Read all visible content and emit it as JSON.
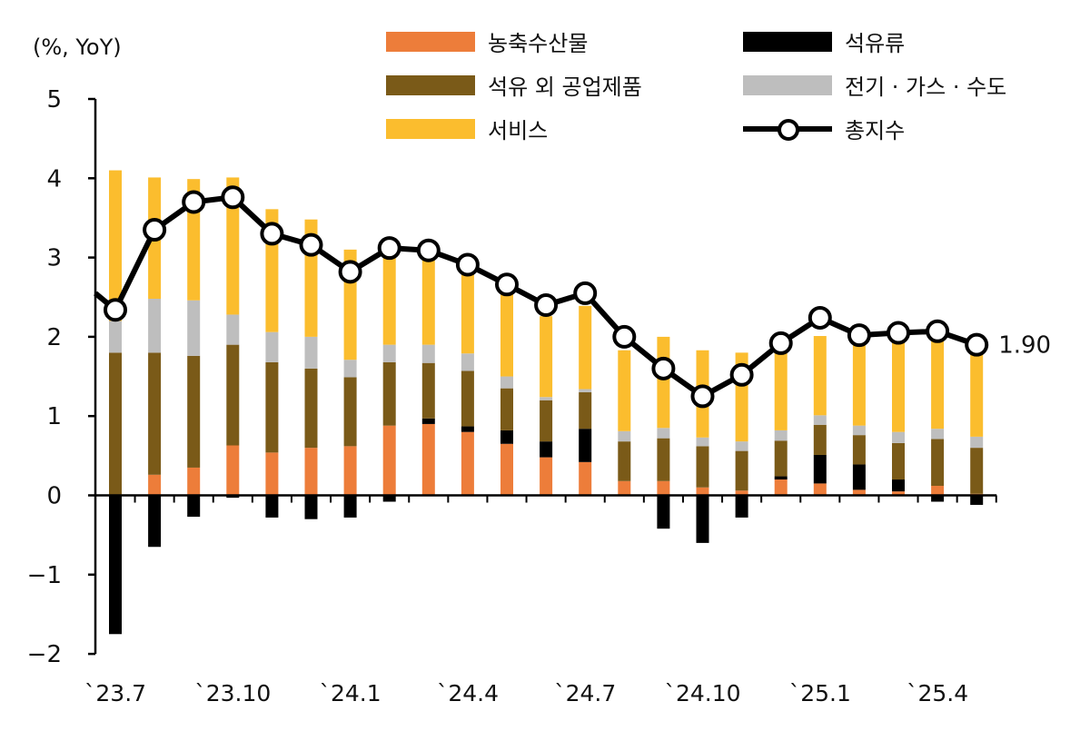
{
  "unit_label": "(%, YoY)",
  "legend": [
    {
      "label": "농축수산물",
      "color": "#ED7D3A",
      "kind": "bar"
    },
    {
      "label": "석유류",
      "color": "#000000",
      "kind": "bar"
    },
    {
      "label": "석유 외 공업제품",
      "color": "#7A5A18",
      "kind": "bar"
    },
    {
      "label": "전기 · 가스 · 수도",
      "color": "#BEBEBE",
      "kind": "bar"
    },
    {
      "label": "서비스",
      "color": "#FBBD2E",
      "kind": "bar"
    },
    {
      "label": "총지수",
      "color": "#000000",
      "kind": "line"
    }
  ],
  "chart_data": {
    "type": "bar",
    "stacked": true,
    "ylim": [
      -2,
      5
    ],
    "yticks": [
      5,
      4,
      3,
      2,
      1,
      0,
      -1,
      -2
    ],
    "ytick_labels": [
      "5",
      "4",
      "3",
      "2",
      "1",
      "0",
      "−1",
      "−2"
    ],
    "categories": [
      "`23.7",
      "`23.8",
      "`23.9",
      "`23.10",
      "`23.11",
      "`23.12",
      "`24.1",
      "`24.2",
      "`24.3",
      "`24.4",
      "`24.5",
      "`24.6",
      "`24.7",
      "`24.8",
      "`24.9",
      "`24.10",
      "`24.11",
      "`24.12",
      "`25.1",
      "`25.2",
      "`25.3",
      "`25.4",
      "`25.5"
    ],
    "xtick_labels": {
      "0": "`23.7",
      "3": "`23.10",
      "6": "`24.1",
      "9": "`24.4",
      "12": "`24.7",
      "15": "`24.10",
      "18": "`25.1",
      "21": "`25.4"
    },
    "series": [
      {
        "name": "농축수산물",
        "color": "#ED7D3A",
        "values": [
          0.0,
          0.26,
          0.35,
          0.63,
          0.54,
          0.6,
          0.62,
          0.88,
          0.9,
          0.8,
          0.65,
          0.48,
          0.42,
          0.18,
          0.18,
          0.1,
          0.06,
          0.2,
          0.15,
          0.07,
          0.05,
          0.12,
          0.02
        ]
      },
      {
        "name": "석유류",
        "color": "#000000",
        "values": [
          -1.75,
          -0.65,
          -0.27,
          -0.03,
          -0.28,
          -0.3,
          -0.28,
          -0.08,
          0.07,
          0.07,
          0.17,
          0.2,
          0.42,
          0.0,
          -0.42,
          -0.6,
          -0.28,
          0.04,
          0.36,
          0.32,
          0.15,
          -0.08,
          -0.12
        ]
      },
      {
        "name": "석유 외 공업제품",
        "color": "#7A5A18",
        "values": [
          1.8,
          1.54,
          1.41,
          1.27,
          1.14,
          1.0,
          0.87,
          0.8,
          0.7,
          0.7,
          0.53,
          0.52,
          0.46,
          0.5,
          0.54,
          0.52,
          0.5,
          0.45,
          0.38,
          0.37,
          0.46,
          0.59,
          0.58
        ]
      },
      {
        "name": "전기 · 가스 · 수도",
        "color": "#BEBEBE",
        "values": [
          0.4,
          0.68,
          0.7,
          0.38,
          0.38,
          0.4,
          0.22,
          0.22,
          0.23,
          0.22,
          0.15,
          0.04,
          0.04,
          0.13,
          0.13,
          0.11,
          0.12,
          0.13,
          0.12,
          0.12,
          0.14,
          0.13,
          0.14
        ]
      },
      {
        "name": "서비스",
        "color": "#FBBD2E",
        "values": [
          1.9,
          1.53,
          1.53,
          1.73,
          1.55,
          1.48,
          1.39,
          1.2,
          1.2,
          1.0,
          1.15,
          1.02,
          1.05,
          1.02,
          1.15,
          1.1,
          1.12,
          1.0,
          1.0,
          1.02,
          1.2,
          1.18,
          1.18
        ]
      },
      {
        "name": "총지수",
        "color": "#000000",
        "kind": "line",
        "values": [
          2.34,
          3.35,
          3.7,
          3.76,
          3.3,
          3.16,
          2.82,
          3.12,
          3.09,
          2.91,
          2.66,
          2.4,
          2.55,
          2.0,
          1.6,
          1.25,
          1.52,
          1.92,
          2.24,
          2.02,
          2.05,
          2.07,
          1.9
        ]
      }
    ],
    "end_label": "1.90"
  }
}
